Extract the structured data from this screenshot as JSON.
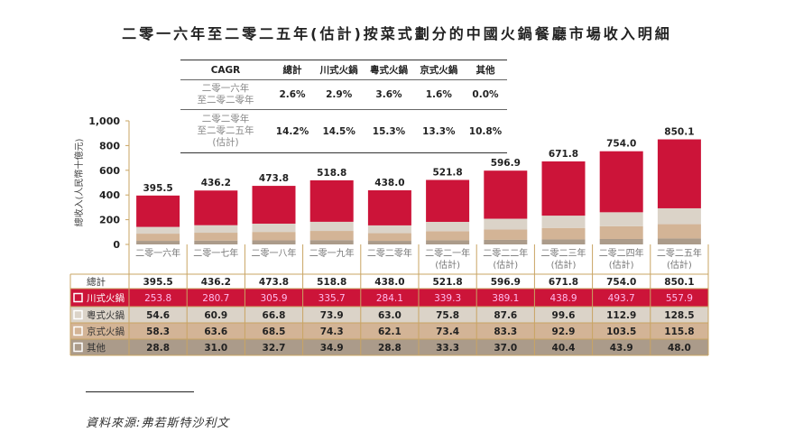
{
  "title": "二零一六年至二零二五年(估計)按菜式劃分的中國火鍋餐廳市場收入明細",
  "cagr_table": {
    "headers": [
      "CAGR",
      "總計",
      "川式火鍋",
      "粵式火鍋",
      "京式火鍋",
      "其他"
    ],
    "rows": [
      {
        "label": "二零一六年\n至二零二零年",
        "values": [
          "2.6%",
          "2.9%",
          "3.6%",
          "1.6%",
          "0.0%"
        ]
      },
      {
        "label": "二零二零年\n至二零二五年\n(估計)",
        "values": [
          "14.2%",
          "14.5%",
          "15.3%",
          "13.3%",
          "10.8%"
        ]
      }
    ]
  },
  "chart_data": {
    "type": "bar",
    "stacked": true,
    "ylabel": "總收入(人民幣十億元)",
    "ylim": [
      0,
      1000
    ],
    "yticks": [
      "0",
      "200",
      "400",
      "600",
      "800",
      "1,000"
    ],
    "grid": false,
    "categories": [
      "二零一六年",
      "二零一七年",
      "二零一八年",
      "二零一九年",
      "二零二零年",
      "二零二一年\n(估計)",
      "二零二二年\n(估計)",
      "二零二三年\n(估計)",
      "二零二四年\n(估計)",
      "二零二五年\n(估計)"
    ],
    "totals_label": "總計",
    "totals": [
      "395.5",
      "436.2",
      "473.8",
      "518.8",
      "438.0",
      "521.8",
      "596.9",
      "671.8",
      "754.0",
      "850.1"
    ],
    "series": [
      {
        "name": "川式火鍋",
        "color": "#cc1439",
        "values": [
          253.8,
          280.7,
          305.9,
          335.7,
          284.1,
          339.3,
          389.1,
          438.9,
          493.7,
          557.9
        ]
      },
      {
        "name": "粵式火鍋",
        "color": "#dbd3c8",
        "values": [
          54.6,
          60.9,
          66.8,
          73.9,
          63.0,
          75.8,
          87.6,
          99.6,
          112.9,
          128.5
        ]
      },
      {
        "name": "京式火鍋",
        "color": "#d3b496",
        "values": [
          58.3,
          63.6,
          68.5,
          74.3,
          62.1,
          73.4,
          83.3,
          92.9,
          103.5,
          115.8
        ]
      },
      {
        "name": "其他",
        "color": "#ab9b8a",
        "values": [
          28.8,
          31.0,
          32.7,
          34.9,
          28.8,
          33.3,
          37.0,
          40.4,
          43.9,
          48.0
        ]
      }
    ]
  },
  "source": "資料來源:弗若斯特沙利文"
}
